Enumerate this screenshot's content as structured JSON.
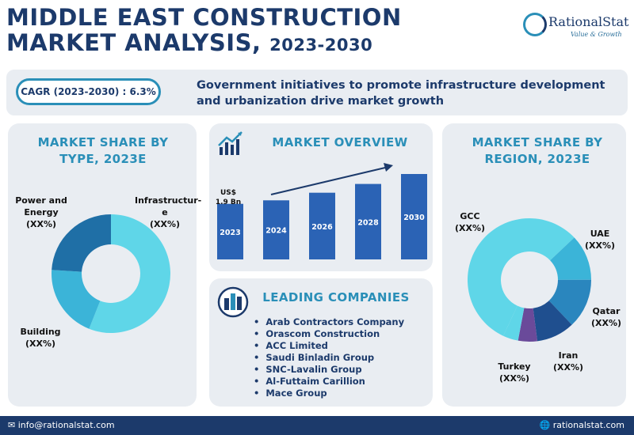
{
  "header": {
    "title_line1": "MIDDLE EAST CONSTRUCTION",
    "title_line2": "MARKET ANALYSIS,",
    "title_years": "2023-2030",
    "logo_name": "RationalStat",
    "logo_tagline": "Value & Growth"
  },
  "banner": {
    "cagr": "CAGR (2023-2030) : 6.3%",
    "text": "Government initiatives to promote infrastructure development and urbanization drive market growth"
  },
  "colors": {
    "navy": "#1c3a6b",
    "teal": "#2a8fb8",
    "panel": "#e9edf2",
    "bar": "#2b63b5"
  },
  "chart_data": [
    {
      "type": "pie",
      "title": "MARKET SHARE BY TYPE, 2023E",
      "donut": true,
      "slices": [
        {
          "name": "Infrastructure",
          "label": "Infrastructur-\ne\n(XX%)",
          "value": 56,
          "color": "#5fd6e8"
        },
        {
          "name": "Building",
          "label": "Building\n(XX%)",
          "value": 20,
          "color": "#3bb4d8"
        },
        {
          "name": "Power and Energy",
          "label": "Power and\nEnergy\n(XX%)",
          "value": 24,
          "color": "#1f6fa6"
        }
      ]
    },
    {
      "type": "bar",
      "title": "MARKET OVERVIEW",
      "categories": [
        "2023",
        "2024",
        "2026",
        "2028",
        "2030"
      ],
      "values": [
        1.9,
        2.02,
        2.28,
        2.58,
        2.92
      ],
      "annotation": "US$\n1.9 Bn",
      "trend_arrow": true
    },
    {
      "type": "pie",
      "title": "MARKET SHARE BY REGION, 2023E",
      "donut": true,
      "slices": [
        {
          "name": "GCC",
          "label": "GCC\n(XX%)",
          "value": 56,
          "color": "#5fd6e8"
        },
        {
          "name": "UAE",
          "label": "UAE\n(XX%)",
          "value": 12,
          "color": "#3bb4d8"
        },
        {
          "name": "Qatar",
          "label": "Qatar\n(XX%)",
          "value": 13,
          "color": "#2a86be"
        },
        {
          "name": "Iran",
          "label": "Iran\n(XX%)",
          "value": 10,
          "color": "#1f4f8f"
        },
        {
          "name": "Turkey",
          "label": "Turkey\n(XX%)",
          "value": 5,
          "color": "#6a4a9a"
        },
        {
          "name": "Other",
          "label": "",
          "value": 4,
          "color": "#5fd6e8"
        }
      ]
    }
  ],
  "companies": {
    "title": "LEADING COMPANIES",
    "items": [
      "Arab Contractors Company",
      "Orascom Construction",
      "ACC Limited",
      "Saudi Binladin Group",
      "SNC-Lavalin Group",
      "Al-Futtaim Carillion",
      "Mace Group"
    ]
  },
  "footer": {
    "email": "info@rationalstat.com",
    "website": "rationalstat.com"
  }
}
